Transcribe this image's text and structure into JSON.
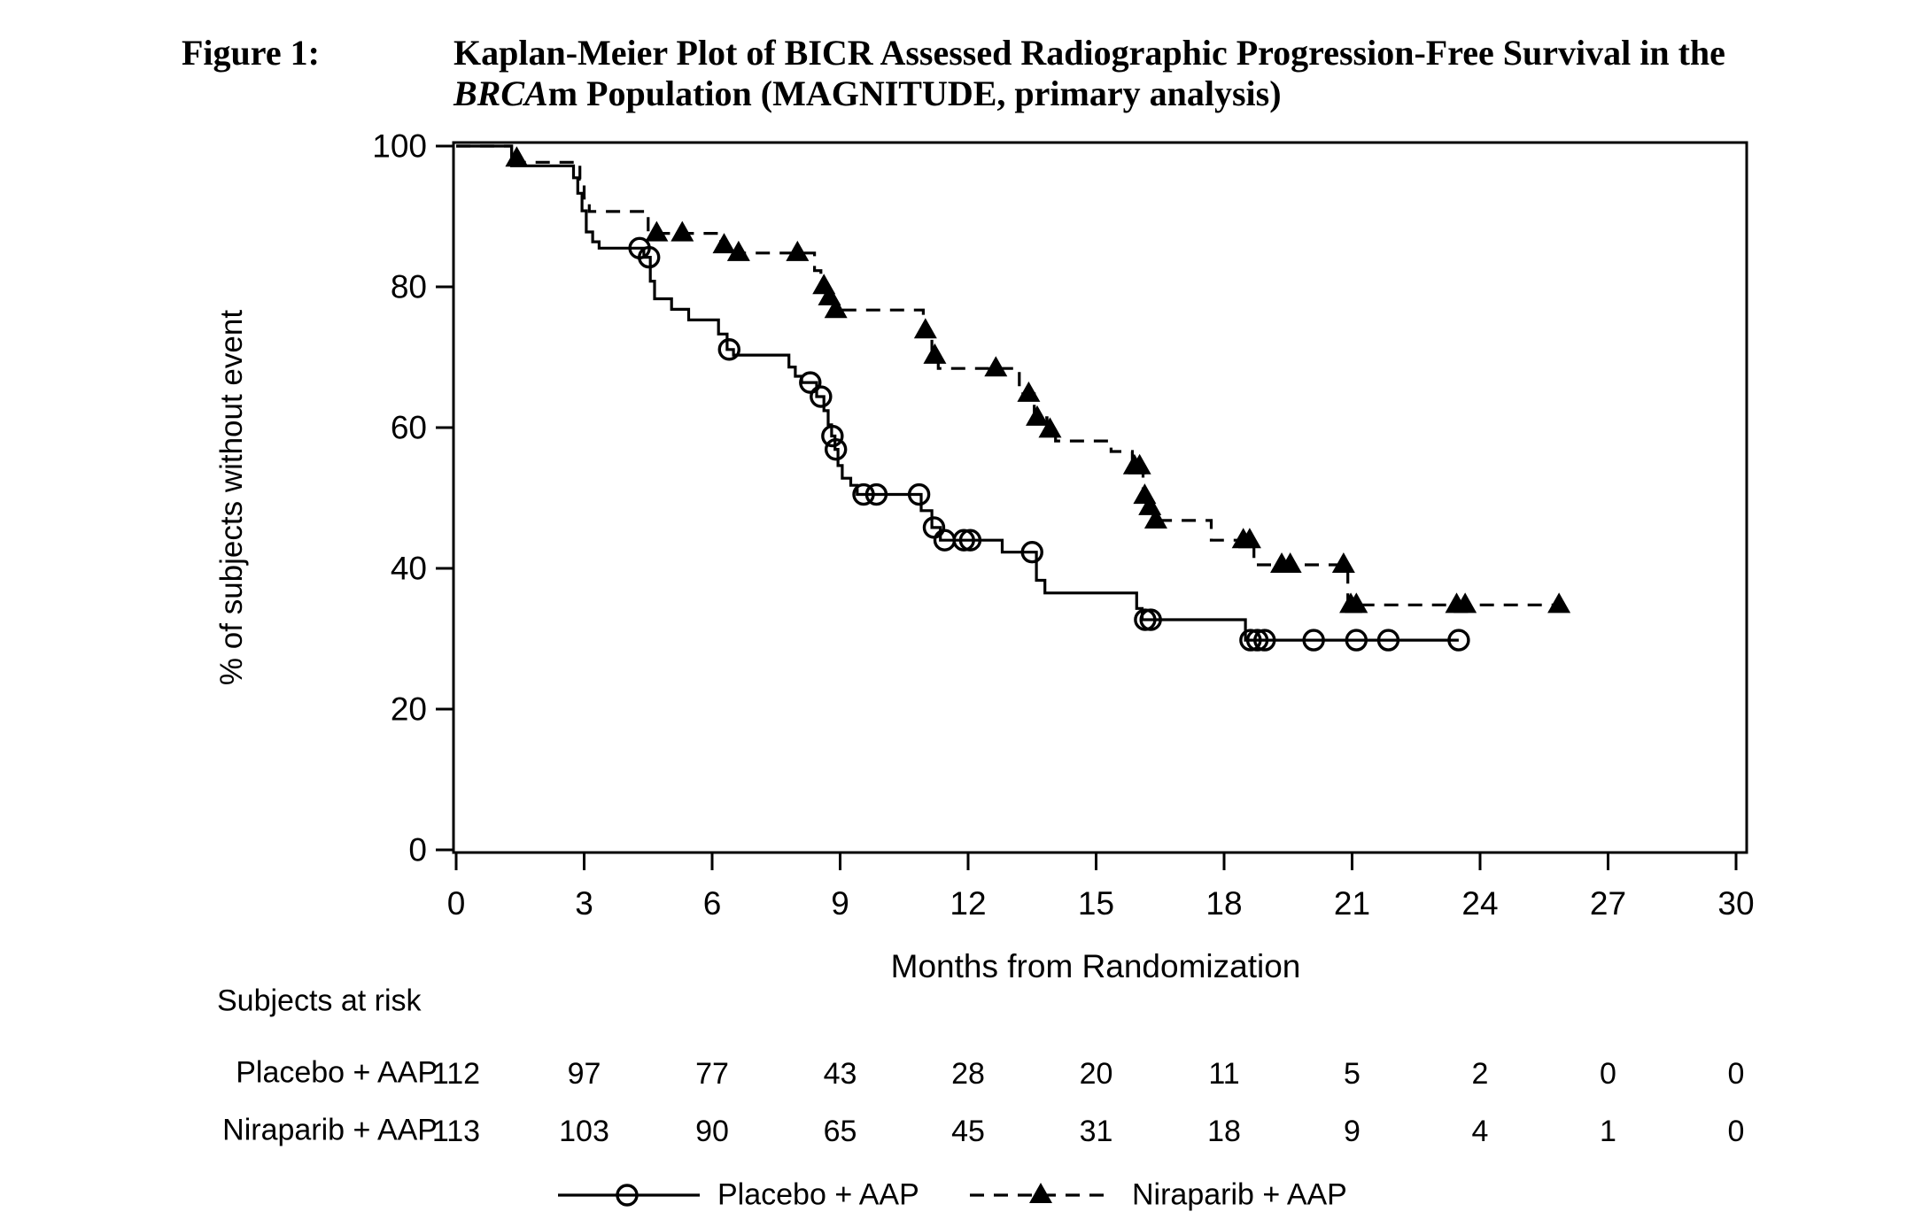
{
  "figure": {
    "label": "Figure 1:",
    "title_line1": "Kaplan-Meier Plot of BICR Assessed Radiographic Progression-Free Survival in the",
    "title_line2_italic": "BRCA",
    "title_line2_rest": "m Population (MAGNITUDE, primary analysis)"
  },
  "chart_data": {
    "type": "line",
    "variant": "kaplan_meier_step",
    "title": "Kaplan-Meier Plot of BICR Assessed Radiographic Progression-Free Survival in the BRCAm Population (MAGNITUDE, primary analysis)",
    "xlabel": "Months from Randomization",
    "ylabel": "% of subjects without event",
    "xlim": [
      0,
      30
    ],
    "ylim": [
      0,
      100
    ],
    "xticks": [
      0,
      3,
      6,
      9,
      12,
      15,
      18,
      21,
      24,
      27,
      30
    ],
    "yticks": [
      0,
      20,
      40,
      60,
      80,
      100
    ],
    "grid": false,
    "legend_position": "bottom",
    "series": [
      {
        "name": "Placebo + AAP",
        "line": "solid",
        "marker": "circle",
        "end_time": 23.5,
        "steps": [
          [
            0,
            100
          ],
          [
            1.3,
            97.2
          ],
          [
            2.75,
            95.5
          ],
          [
            2.85,
            93.3
          ],
          [
            2.95,
            90.8
          ],
          [
            3.05,
            87.8
          ],
          [
            3.2,
            86.4
          ],
          [
            3.35,
            85.5
          ],
          [
            4.4,
            84.2
          ],
          [
            4.55,
            80.8
          ],
          [
            4.65,
            78.3
          ],
          [
            5.05,
            76.8
          ],
          [
            5.45,
            75.3
          ],
          [
            6.15,
            73.3
          ],
          [
            6.35,
            71.1
          ],
          [
            6.5,
            70.3
          ],
          [
            7.8,
            68.6
          ],
          [
            7.95,
            67.3
          ],
          [
            8.1,
            66.4
          ],
          [
            8.45,
            64.4
          ],
          [
            8.62,
            62.4
          ],
          [
            8.72,
            60.4
          ],
          [
            8.8,
            58.8
          ],
          [
            8.88,
            56.9
          ],
          [
            8.95,
            54.6
          ],
          [
            9.05,
            52.8
          ],
          [
            9.25,
            51.8
          ],
          [
            9.4,
            50.5
          ],
          [
            10.9,
            48.2
          ],
          [
            11.15,
            45.8
          ],
          [
            11.35,
            44.0
          ],
          [
            12.8,
            42.3
          ],
          [
            13.6,
            38.3
          ],
          [
            13.8,
            36.5
          ],
          [
            15.95,
            34.3
          ],
          [
            16.08,
            32.7
          ],
          [
            18.5,
            29.8
          ]
        ],
        "censors": [
          [
            4.3,
            85.5
          ],
          [
            4.52,
            84.2
          ],
          [
            6.4,
            71.1
          ],
          [
            8.3,
            66.4
          ],
          [
            8.55,
            64.4
          ],
          [
            8.82,
            58.8
          ],
          [
            8.9,
            56.9
          ],
          [
            9.55,
            50.5
          ],
          [
            9.85,
            50.5
          ],
          [
            10.85,
            50.5
          ],
          [
            11.2,
            45.8
          ],
          [
            11.45,
            44.0
          ],
          [
            11.9,
            44.0
          ],
          [
            12.05,
            44.0
          ],
          [
            13.5,
            42.3
          ],
          [
            16.15,
            32.7
          ],
          [
            16.28,
            32.7
          ],
          [
            18.62,
            29.8
          ],
          [
            18.78,
            29.8
          ],
          [
            18.95,
            29.8
          ],
          [
            20.1,
            29.8
          ],
          [
            21.1,
            29.8
          ],
          [
            21.85,
            29.8
          ],
          [
            23.5,
            29.8
          ]
        ]
      },
      {
        "name": "Niraparib + AAP",
        "line": "dashed",
        "marker": "triangle",
        "end_time": 25.9,
        "steps": [
          [
            0,
            100
          ],
          [
            1.3,
            97.7
          ],
          [
            2.9,
            95.3
          ],
          [
            3.0,
            92.6
          ],
          [
            3.12,
            90.7
          ],
          [
            4.5,
            87.6
          ],
          [
            6.2,
            85.9
          ],
          [
            6.55,
            84.8
          ],
          [
            8.4,
            82.3
          ],
          [
            8.55,
            80.1
          ],
          [
            8.7,
            78.5
          ],
          [
            8.85,
            76.7
          ],
          [
            10.95,
            73.8
          ],
          [
            11.15,
            70.2
          ],
          [
            11.3,
            68.4
          ],
          [
            13.2,
            64.8
          ],
          [
            13.55,
            61.4
          ],
          [
            13.85,
            59.7
          ],
          [
            14.05,
            58.1
          ],
          [
            15.35,
            56.6
          ],
          [
            15.85,
            54.5
          ],
          [
            16.1,
            50.3
          ],
          [
            16.22,
            48.7
          ],
          [
            16.35,
            46.8
          ],
          [
            17.7,
            44.0
          ],
          [
            18.7,
            40.5
          ],
          [
            20.9,
            34.8
          ]
        ],
        "censors": [
          [
            1.42,
            98.2
          ],
          [
            4.7,
            87.6
          ],
          [
            5.3,
            87.6
          ],
          [
            6.28,
            85.9
          ],
          [
            6.62,
            84.8
          ],
          [
            8.0,
            84.8
          ],
          [
            8.62,
            80.1
          ],
          [
            8.75,
            78.5
          ],
          [
            8.9,
            76.7
          ],
          [
            11.0,
            73.8
          ],
          [
            11.22,
            70.2
          ],
          [
            12.65,
            68.4
          ],
          [
            13.42,
            64.8
          ],
          [
            13.62,
            61.4
          ],
          [
            13.92,
            59.7
          ],
          [
            15.9,
            54.5
          ],
          [
            16.02,
            54.5
          ],
          [
            16.14,
            50.3
          ],
          [
            16.26,
            48.7
          ],
          [
            16.4,
            46.8
          ],
          [
            18.45,
            44.0
          ],
          [
            18.6,
            44.0
          ],
          [
            19.35,
            40.5
          ],
          [
            19.55,
            40.5
          ],
          [
            20.8,
            40.5
          ],
          [
            20.97,
            34.8
          ],
          [
            21.1,
            34.8
          ],
          [
            23.45,
            34.8
          ],
          [
            23.65,
            34.8
          ],
          [
            25.85,
            34.8
          ]
        ]
      }
    ],
    "at_risk": {
      "header": "Subjects at risk",
      "times": [
        0,
        3,
        6,
        9,
        12,
        15,
        18,
        21,
        24,
        27,
        30
      ],
      "rows": [
        {
          "label": "Placebo + AAP",
          "counts": [
            112,
            97,
            77,
            43,
            28,
            20,
            11,
            5,
            2,
            0,
            0
          ]
        },
        {
          "label": "Niraparib + AAP",
          "counts": [
            113,
            103,
            90,
            65,
            45,
            31,
            18,
            9,
            4,
            1,
            0
          ]
        }
      ]
    },
    "colors": {
      "line": "#000000",
      "text": "#000000",
      "background": "#ffffff"
    }
  }
}
